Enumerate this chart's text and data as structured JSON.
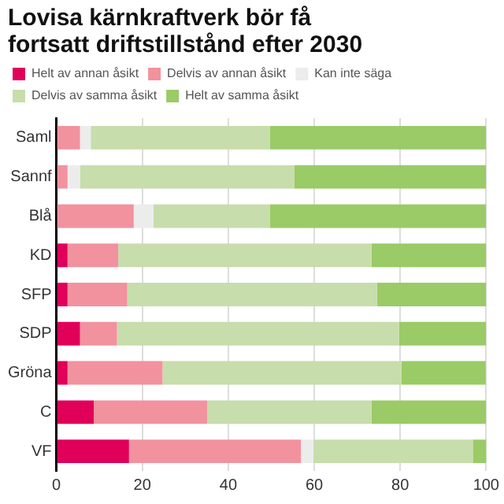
{
  "chart_data": {
    "type": "bar",
    "title": "Lovisa kärnkraftverk bör få fortsatt driftstillstånd efter 2030",
    "orientation": "horizontal",
    "stacked": true,
    "categories": [
      "Saml",
      "Sannf",
      "Blå",
      "KD",
      "SFP",
      "SDP",
      "Gröna",
      "C",
      "VF"
    ],
    "series": [
      {
        "name": "Helt av annan åsikt",
        "color": "#e0005a",
        "values": [
          0,
          0,
          0,
          2.6,
          2.6,
          5.5,
          2.6,
          8.7,
          16.9
        ]
      },
      {
        "name": "Delvis av annan åsikt",
        "color": "#f2929e",
        "values": [
          5.5,
          2.6,
          18,
          11.8,
          13.9,
          8.6,
          22.1,
          26.4,
          40
        ]
      },
      {
        "name": "Kan inte säga",
        "color": "#ececec",
        "values": [
          2.5,
          2.9,
          4.6,
          0,
          0,
          0,
          0,
          0,
          2.9
        ]
      },
      {
        "name": "Delvis av samma åsikt",
        "color": "#c7ddab",
        "values": [
          41.7,
          49.9,
          27.1,
          58.9,
          58.1,
          65.6,
          55.6,
          38.2,
          37.1
        ]
      },
      {
        "name": "Helt av samma åsikt",
        "color": "#9acb66",
        "values": [
          50.3,
          44.6,
          50.3,
          26.7,
          25.4,
          20.3,
          19.6,
          26.7,
          3.2
        ]
      }
    ],
    "xlim": [
      0,
      100
    ],
    "xticks": [
      0,
      20,
      40,
      60,
      80,
      100
    ],
    "grid": "x",
    "legend": "top"
  }
}
